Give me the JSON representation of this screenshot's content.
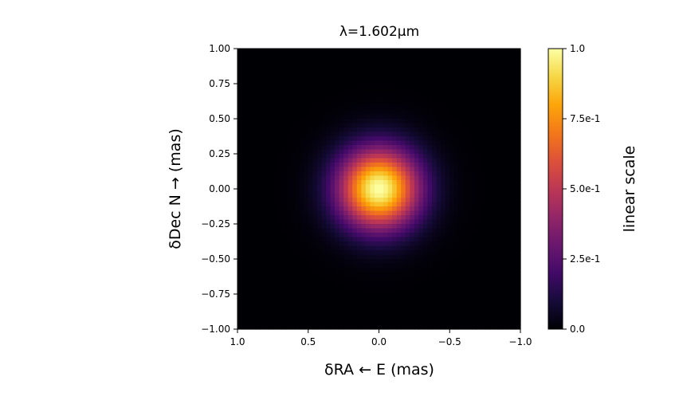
{
  "chart_data": {
    "type": "heatmap",
    "title": "λ=1.602μm",
    "xlabel": "δRA ← E (mas)",
    "ylabel": "δDec N → (mas)",
    "xlim": [
      1.0,
      -1.0
    ],
    "ylim": [
      -1.0,
      1.0
    ],
    "xticks": [
      {
        "value": 1.0,
        "label": "1.0"
      },
      {
        "value": 0.5,
        "label": "0.5"
      },
      {
        "value": 0.0,
        "label": "0.0"
      },
      {
        "value": -0.5,
        "label": "−0.5"
      },
      {
        "value": -1.0,
        "label": "−1.0"
      }
    ],
    "yticks": [
      {
        "value": 1.0,
        "label": "1.00"
      },
      {
        "value": 0.75,
        "label": "0.75"
      },
      {
        "value": 0.5,
        "label": "0.50"
      },
      {
        "value": 0.25,
        "label": "0.25"
      },
      {
        "value": 0.0,
        "label": "0.00"
      },
      {
        "value": -0.25,
        "label": "−0.25"
      },
      {
        "value": -0.5,
        "label": "−0.50"
      },
      {
        "value": -0.75,
        "label": "−0.75"
      },
      {
        "value": -1.0,
        "label": "−1.00"
      }
    ],
    "image": {
      "model": "gaussian",
      "center": [
        0.0,
        0.0
      ],
      "sigma_mas": 0.2,
      "peak": 1.0,
      "grid": 64
    },
    "colormap": "inferno",
    "colorbar": {
      "label": "linear scale",
      "range": [
        0.0,
        1.0
      ],
      "ticks": [
        {
          "value": 0.0,
          "label": "0.0"
        },
        {
          "value": 0.25,
          "label": "2.5e-1"
        },
        {
          "value": 0.5,
          "label": "5.0e-1"
        },
        {
          "value": 0.75,
          "label": "7.5e-1"
        },
        {
          "value": 1.0,
          "label": "1.0"
        }
      ]
    }
  }
}
